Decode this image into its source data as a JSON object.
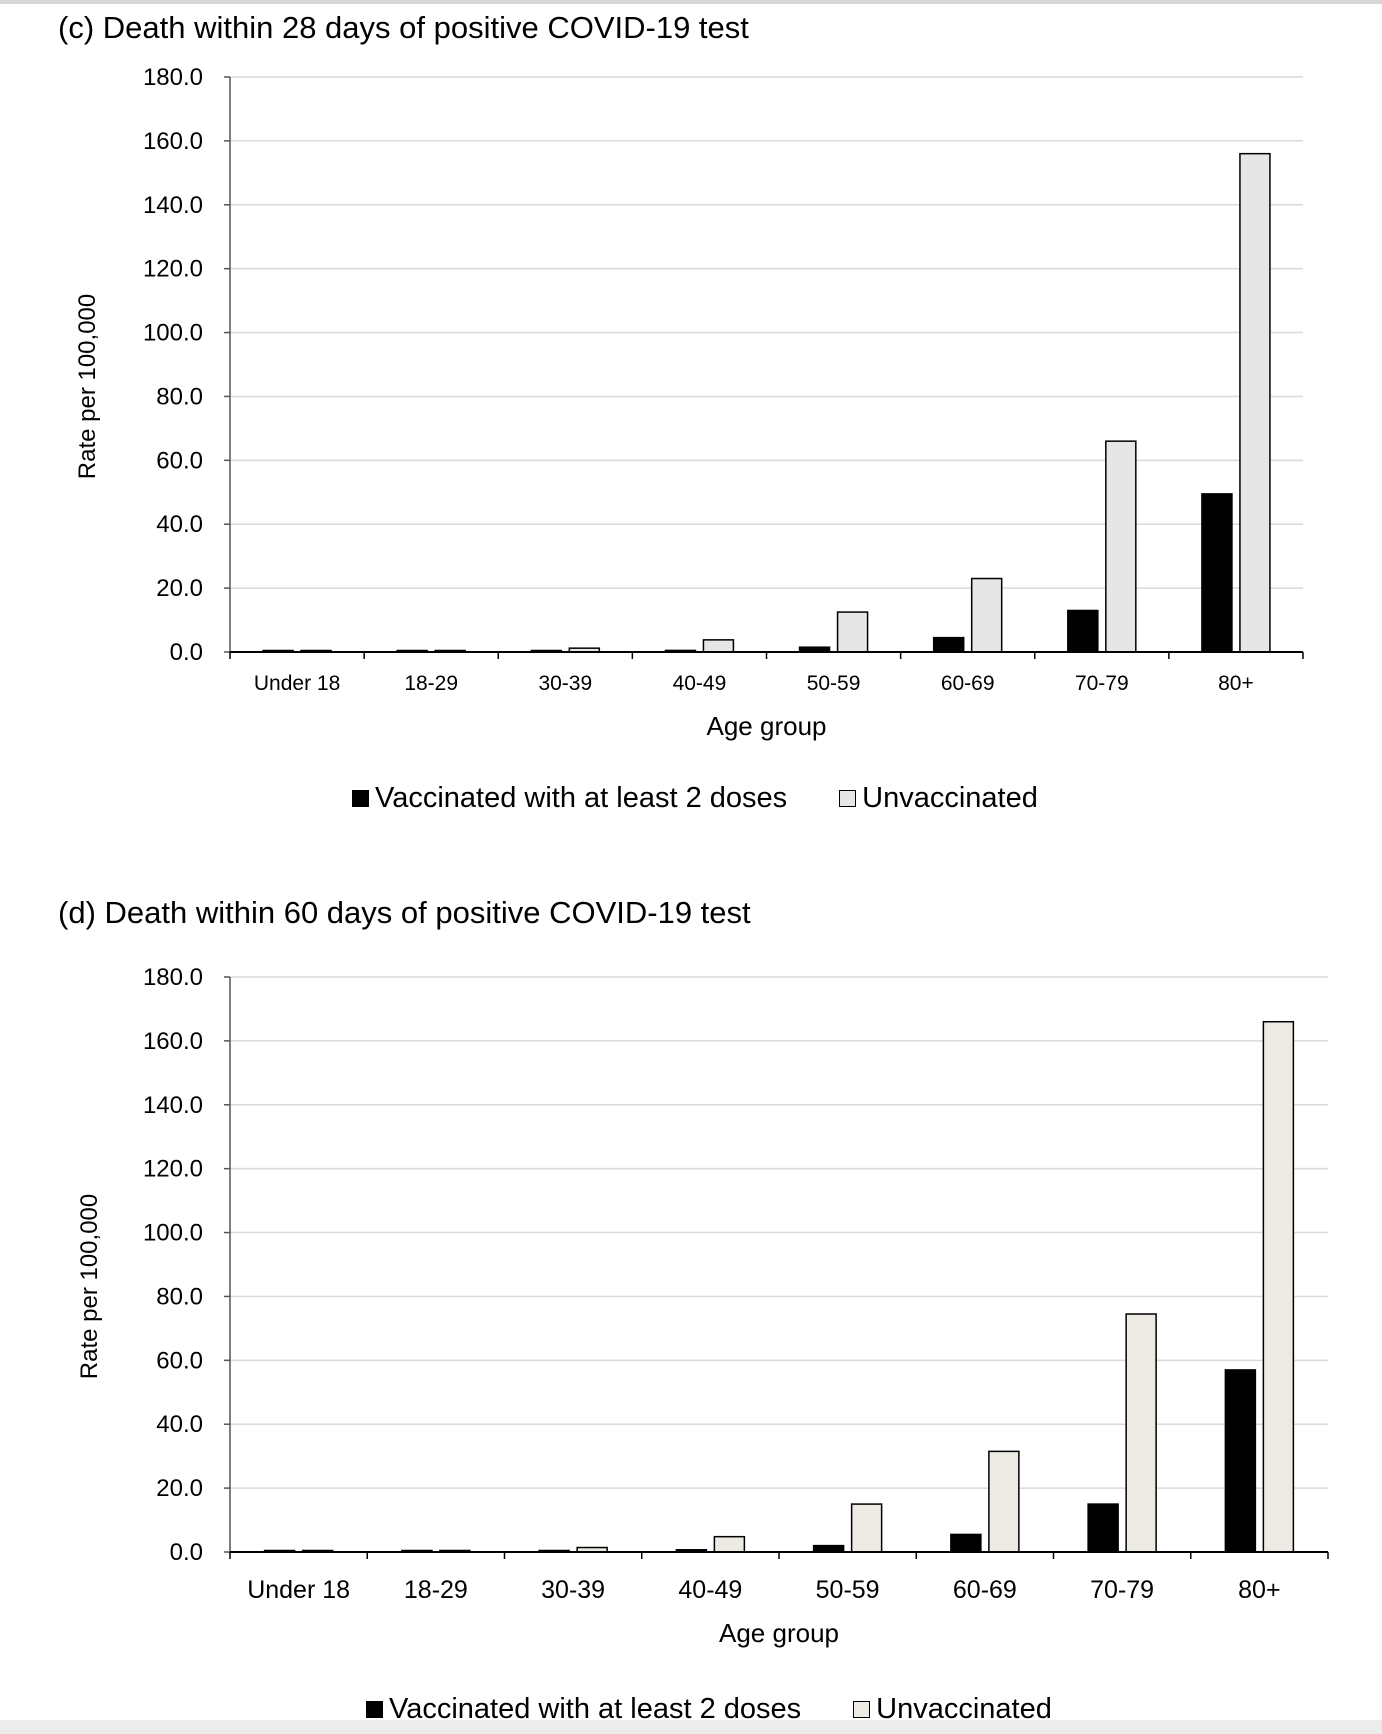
{
  "chart_data": [
    {
      "type": "bar",
      "title": "(c) Death within 28 days of positive COVID-19 test",
      "xlabel": "Age group",
      "ylabel": "Rate per 100,000",
      "ylim": [
        0,
        180
      ],
      "yticks": [
        "0.0",
        "20.0",
        "40.0",
        "60.0",
        "80.0",
        "100.0",
        "120.0",
        "140.0",
        "160.0",
        "180.0"
      ],
      "grid": true,
      "legend_position": "bottom",
      "categories": [
        "Under 18",
        "18-29",
        "30-39",
        "40-49",
        "50-59",
        "60-69",
        "70-79",
        "80+"
      ],
      "series": [
        {
          "name": "Vaccinated with at least 2 doses",
          "color": "#000000",
          "values": [
            0.0,
            0.1,
            0.1,
            0.5,
            1.5,
            4.5,
            13.0,
            49.5
          ]
        },
        {
          "name": "Unvaccinated",
          "color": "#e6e6e6",
          "values": [
            0.0,
            0.3,
            1.2,
            3.8,
            12.5,
            23.0,
            66.0,
            156.0
          ]
        }
      ]
    },
    {
      "type": "bar",
      "title": "(d) Death within 60 days of positive COVID-19 test",
      "xlabel": "Age group",
      "ylabel": "Rate per 100,000",
      "ylim": [
        0,
        180
      ],
      "yticks": [
        "0.0",
        "20.0",
        "40.0",
        "60.0",
        "80.0",
        "100.0",
        "120.0",
        "140.0",
        "160.0",
        "180.0"
      ],
      "grid": true,
      "legend_position": "bottom",
      "categories": [
        "Under 18",
        "18-29",
        "30-39",
        "40-49",
        "50-59",
        "60-69",
        "70-79",
        "80+"
      ],
      "series": [
        {
          "name": "Vaccinated with at least 2 doses",
          "color": "#000000",
          "values": [
            0.0,
            0.1,
            0.2,
            0.7,
            2.0,
            5.5,
            15.0,
            57.0
          ]
        },
        {
          "name": "Unvaccinated",
          "color": "#eceae2",
          "values": [
            0.0,
            0.4,
            1.4,
            4.8,
            15.0,
            31.5,
            74.5,
            166.0
          ]
        }
      ]
    }
  ]
}
